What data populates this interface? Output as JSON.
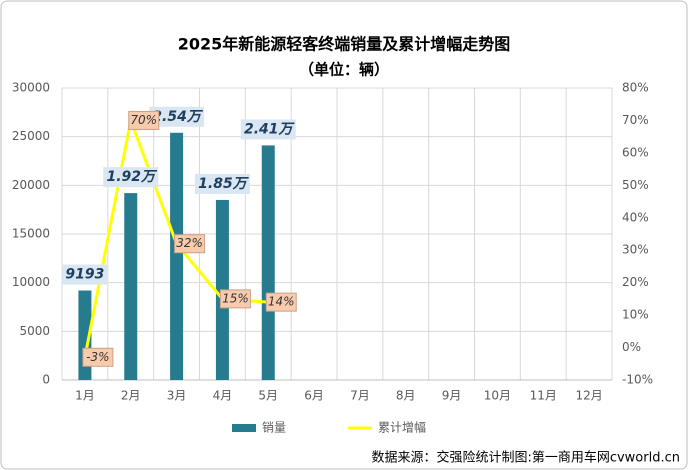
{
  "chart_data": {
    "type": "bar_line",
    "title": "2025年新能源轻客终端销量及累计增幅走势图",
    "subtitle": "（单位：辆）",
    "source": "数据来源：交强险统计制图:第一商用车网cvworld.cn",
    "categories": [
      "1月",
      "2月",
      "3月",
      "4月",
      "5月",
      "6月",
      "7月",
      "8月",
      "9月",
      "10月",
      "11月",
      "12月"
    ],
    "series": [
      {
        "name": "销量",
        "type": "bar",
        "color": "#267b8f",
        "values": [
          9193,
          19200,
          25400,
          18500,
          24100,
          null,
          null,
          null,
          null,
          null,
          null,
          null
        ],
        "value_labels": [
          "9193",
          "1.92万",
          "2.54万",
          "1.85万",
          "2.41万",
          null,
          null,
          null,
          null,
          null,
          null,
          null
        ]
      },
      {
        "name": "累计增幅",
        "type": "line",
        "axis": "y2",
        "color": "#ffff00",
        "values": [
          -3,
          70,
          32,
          15,
          14,
          null,
          null,
          null,
          null,
          null,
          null,
          null
        ],
        "value_labels": [
          "-3%",
          "70%",
          "32%",
          "15%",
          "14%",
          null,
          null,
          null,
          null,
          null,
          null,
          null
        ]
      }
    ],
    "ylim": [
      0,
      30000
    ],
    "yticks": [
      0,
      5000,
      10000,
      15000,
      20000,
      25000,
      30000
    ],
    "y2lim": [
      -10,
      80
    ],
    "y2ticks": [
      {
        "value": -10,
        "label": "-10%"
      },
      {
        "value": 0,
        "label": "0%"
      },
      {
        "value": 10,
        "label": "10%"
      },
      {
        "value": 20,
        "label": "20%"
      },
      {
        "value": 30,
        "label": "30%"
      },
      {
        "value": 40,
        "label": "40%"
      },
      {
        "value": 50,
        "label": "50%"
      },
      {
        "value": 60,
        "label": "60%"
      },
      {
        "value": 70,
        "label": "70%"
      },
      {
        "value": 80,
        "label": "80%"
      }
    ],
    "grid": true,
    "legend": "bottom"
  }
}
